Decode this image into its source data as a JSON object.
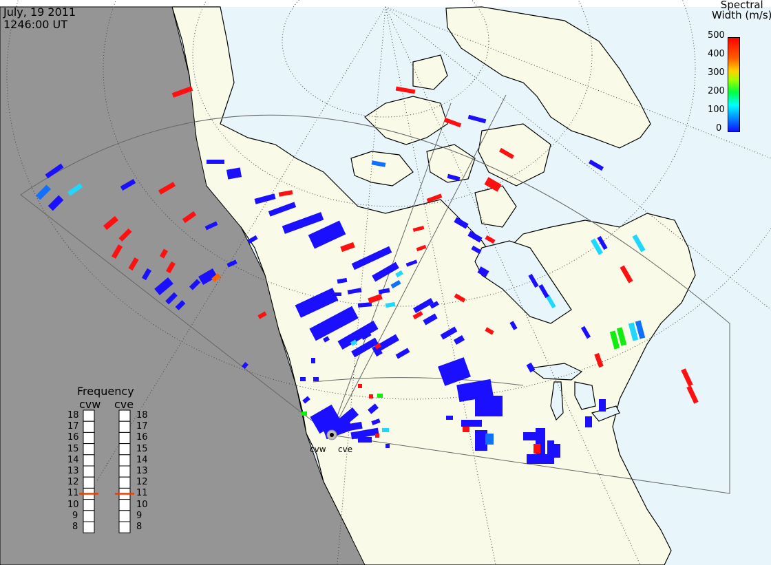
{
  "header": {
    "date": "July, 19 2011",
    "time": "1246:00 UT"
  },
  "legend": {
    "title_line1": "Spectral",
    "title_line2": "Width (m/s)",
    "ticks": [
      "500",
      "400",
      "300",
      "200",
      "100",
      "0"
    ],
    "colors": {
      "low": "#1010ff",
      "high": "#ff0000"
    }
  },
  "frequency_panel": {
    "title": "Frequency",
    "radars": [
      {
        "name": "cvw",
        "value": 11
      },
      {
        "name": "cve",
        "value": 11
      }
    ],
    "ticks": [
      "18",
      "17",
      "16",
      "15",
      "14",
      "13",
      "12",
      "11",
      "10",
      "9",
      "8"
    ],
    "marker_color": "#e84000"
  },
  "site_labels": {
    "west": "cvw",
    "east": "cve"
  },
  "colors": {
    "night": "#959595",
    "land": "#fafae8",
    "ocean": "#e8f6fc",
    "grid": "#555555",
    "fov": "#666666"
  }
}
